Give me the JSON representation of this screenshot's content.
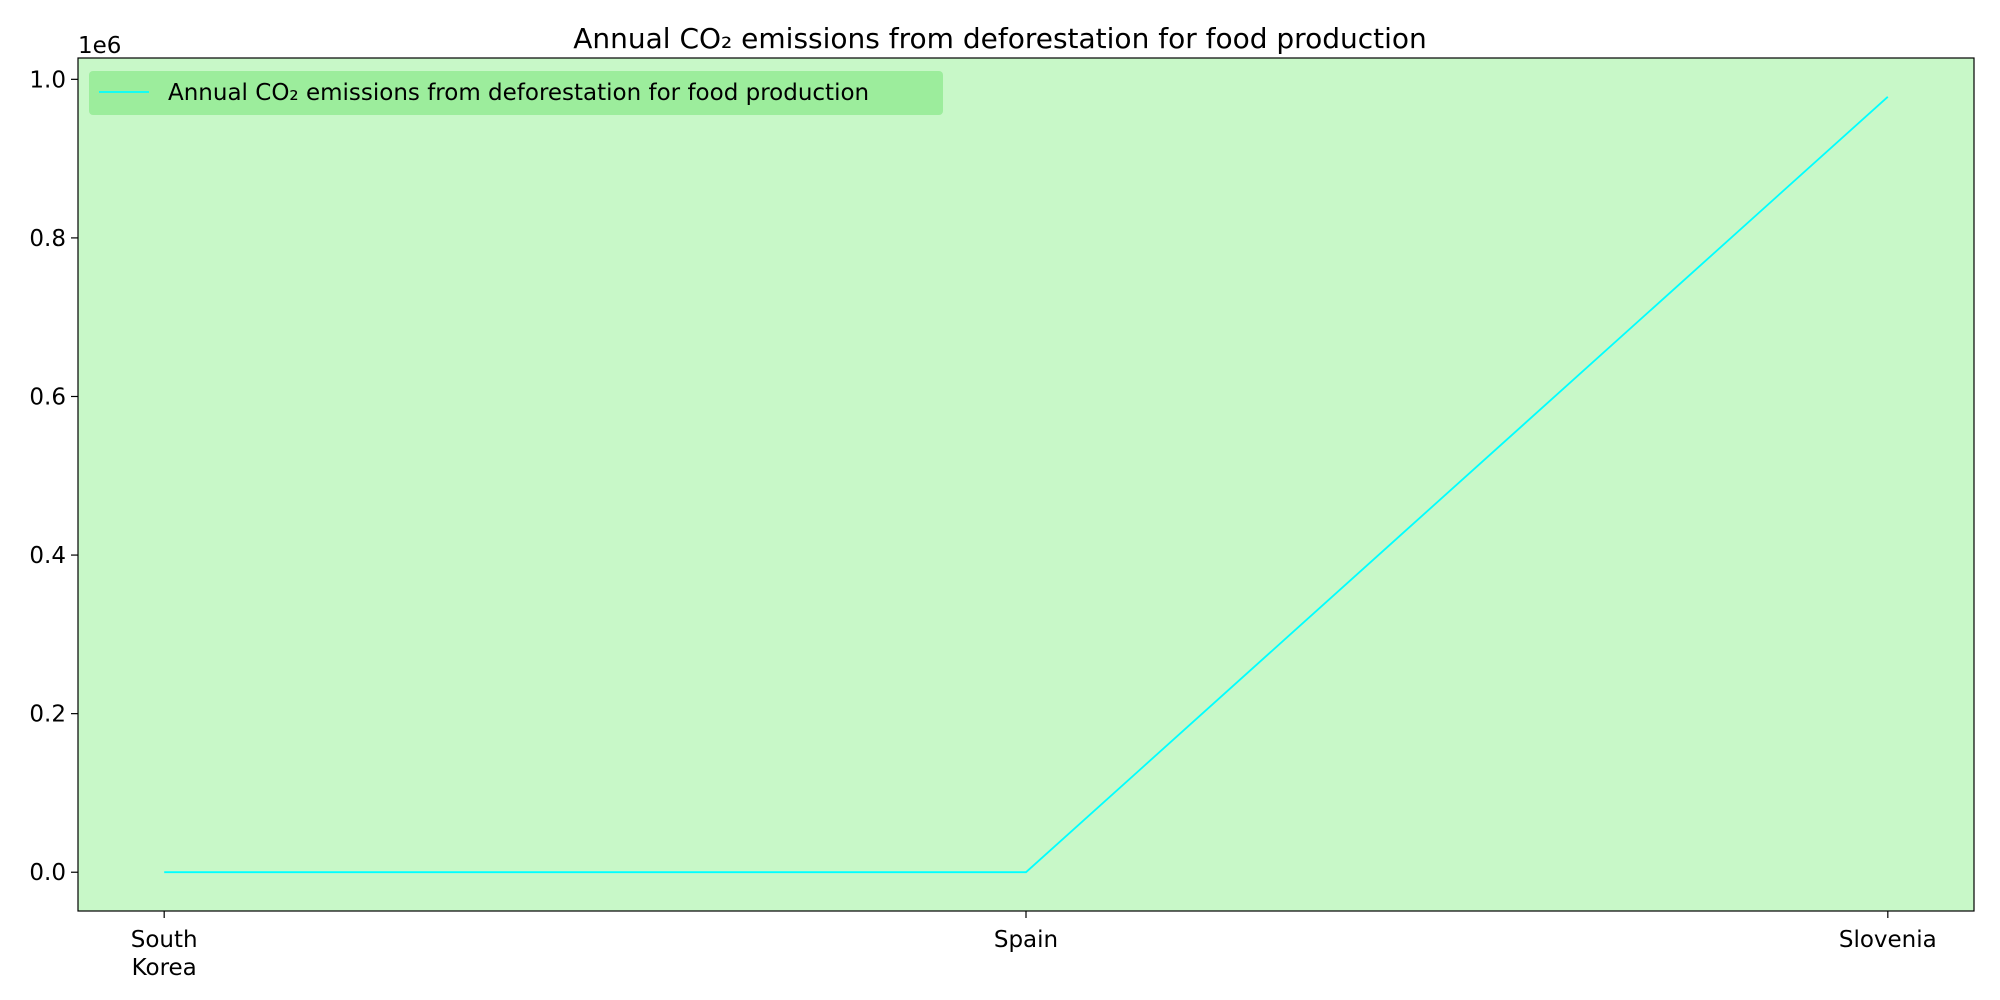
{
  "chart_data": {
    "type": "line",
    "title": "Annual CO₂ emissions from deforestation for food production",
    "xlabel": "",
    "ylabel": "",
    "categories": [
      "South Korea",
      "Spain",
      "Slovenia"
    ],
    "series": [
      {
        "name": "Annual CO₂ emissions from deforestation for food production",
        "values": [
          0,
          0,
          978000
        ],
        "color": "#00ffff"
      }
    ],
    "ylim": [
      -48900,
      1026900
    ],
    "yticks": [
      0,
      200000,
      400000,
      600000,
      800000,
      1000000
    ],
    "ytick_labels": [
      "0.0",
      "0.2",
      "0.4",
      "0.6",
      "0.8",
      "1.0"
    ],
    "y_offset_label": "1e6",
    "grid": false,
    "legend_position": "top-left",
    "plot_background": "#c8f8c8",
    "legend_background": "#9ced9c"
  }
}
